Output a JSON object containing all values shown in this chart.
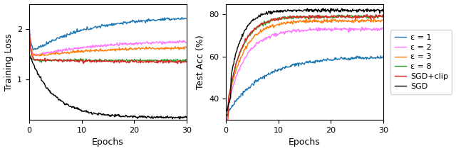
{
  "xlabel": "Epochs",
  "ylabel_left": "Training Loss",
  "ylabel_right": "Test Acc (%)",
  "xlim": [
    0,
    30
  ],
  "ylim_left": [
    0.2,
    2.5
  ],
  "ylim_right": [
    30,
    85
  ],
  "yticks_left": [
    1.0,
    2.0
  ],
  "yticks_right": [
    40,
    60,
    80
  ],
  "xticks": [
    0,
    10,
    20,
    30
  ],
  "colors": {
    "eps1": "#1f77b4",
    "eps2": "#ff77ff",
    "eps3": "#ff7f0e",
    "eps8": "#2ca02c",
    "sgd_clip": "#d62728",
    "sgd": "#000000"
  },
  "legend_labels": [
    "ε = 1",
    "ε = 2",
    "ε = 3",
    "ε = 8",
    "SGD+clip",
    "SGD"
  ],
  "figsize": [
    6.4,
    2.13
  ],
  "dpi": 100
}
